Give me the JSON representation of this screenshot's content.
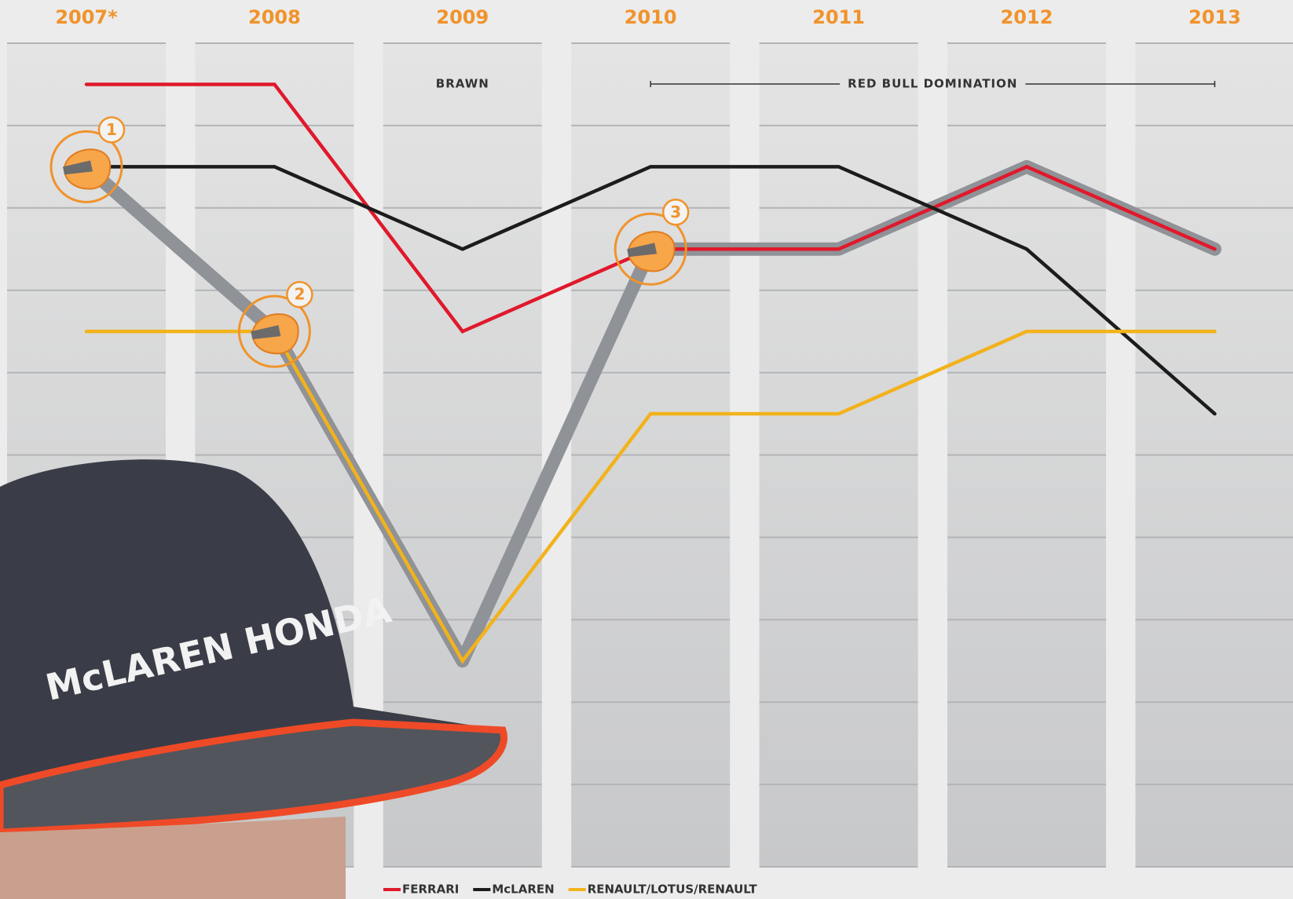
{
  "chart_data": {
    "type": "line",
    "categories": [
      "2007*",
      "2008",
      "2009",
      "2010",
      "2011",
      "2012",
      "2013"
    ],
    "ylim": [
      10.5,
      0.5
    ],
    "series": [
      {
        "color": "#8f9297",
        "values": [
          2,
          4,
          8,
          3,
          3,
          2,
          3
        ]
      },
      {
        "name": "FERRARI",
        "color": "#e0192b",
        "values": [
          1,
          1,
          4,
          3,
          3,
          2,
          3
        ]
      },
      {
        "name": "McLAREN",
        "color": "#1c1c1c",
        "values": [
          2,
          2,
          3,
          2,
          2,
          3,
          5
        ]
      },
      {
        "name": "RENAULT/LOTUS/RENAULT",
        "color": "#f2b21b",
        "values": [
          4,
          4,
          8,
          5,
          5,
          4,
          4
        ]
      }
    ],
    "markers": [
      {
        "label": "1",
        "at": "2007*"
      },
      {
        "label": "2",
        "at": "2008"
      },
      {
        "label": "3",
        "at": "2010"
      }
    ],
    "periods": [
      {
        "label": "BRAWN",
        "from": "2009",
        "to": "2009"
      },
      {
        "label": "RED BULL DOMINATION",
        "from": "2010",
        "to": "2013"
      }
    ],
    "photo_text": "McLAREN HONDA"
  }
}
